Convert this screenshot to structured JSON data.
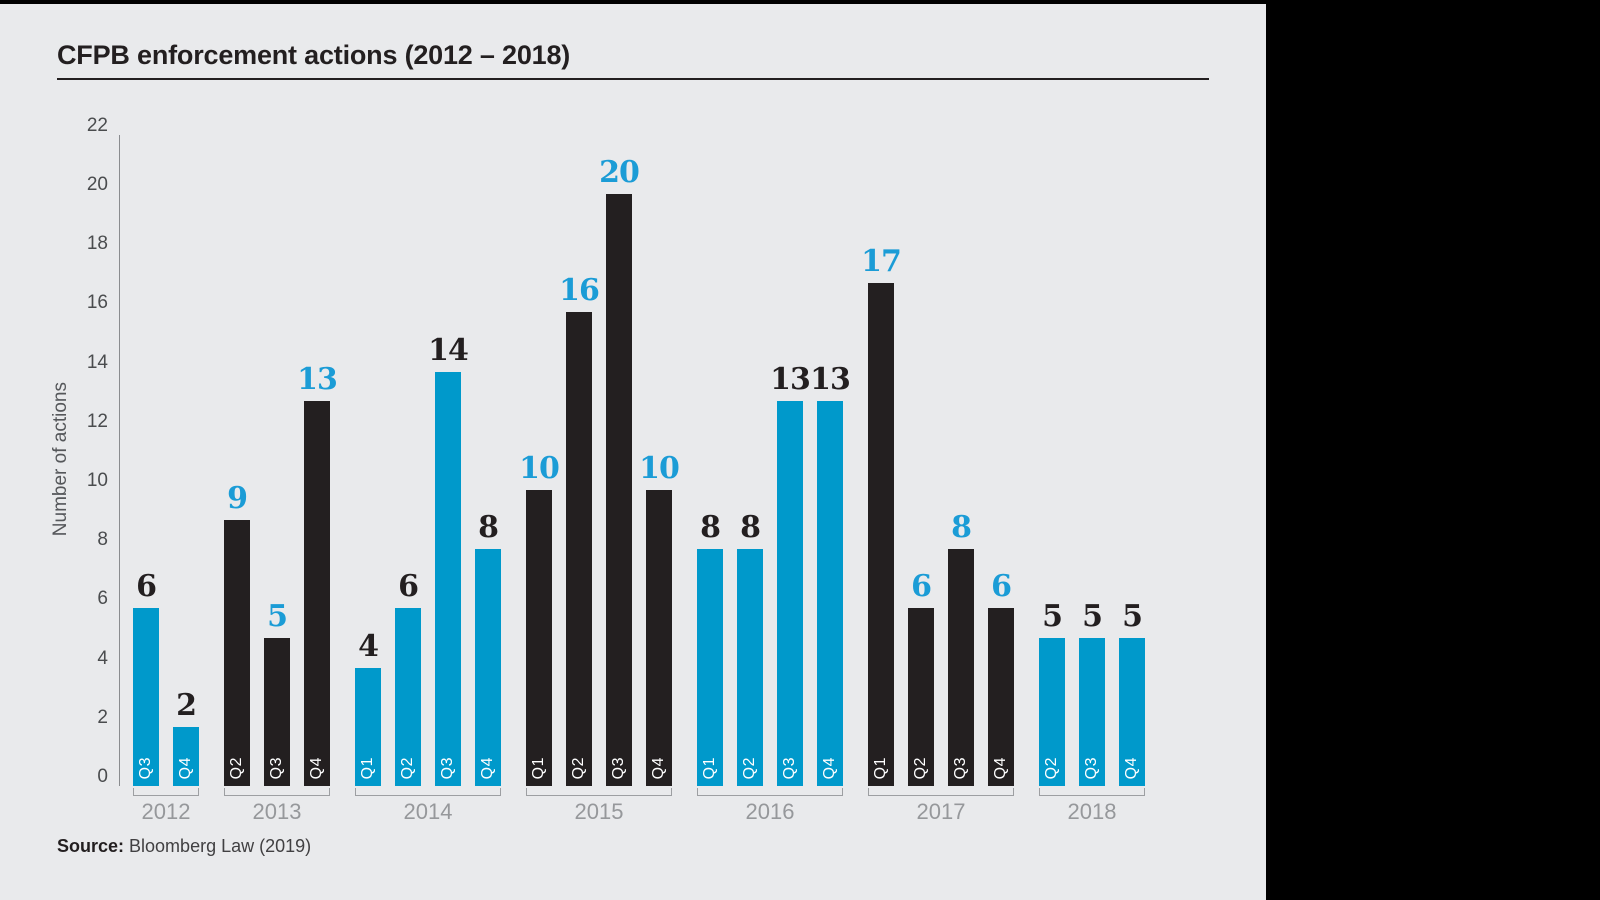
{
  "header": {
    "title": "CFPB enforcement actions (2012 – 2018)"
  },
  "source": {
    "prefix": "Source:",
    "text": " Bloomberg Law (2019)"
  },
  "chart_data": {
    "type": "bar",
    "title": "CFPB enforcement actions (2012 – 2018)",
    "ylabel": "Number of actions",
    "xlabel": "",
    "ylim": [
      0,
      22
    ],
    "yticks": [
      0,
      2,
      4,
      6,
      8,
      10,
      12,
      14,
      16,
      18,
      20,
      22
    ],
    "grid": false,
    "legend": "none",
    "bar_label_style": "value above bar, serif bold, contrast color",
    "quarter_label_style": "white, rotated 90deg CCW, inside bar bottom",
    "palette": {
      "blue": "#0099cb",
      "black": "#231f20",
      "label_blue": "#1b9cd6",
      "label_black": "#231f20",
      "background": "#e9eaec",
      "axis_line": "#8a8c8f",
      "tick_text": "#4a4c4e",
      "year_text": "#96989b",
      "bracket": "#9d9fa2",
      "quarter_text": "#ffffff"
    },
    "groups": [
      {
        "year": "2012",
        "bars": [
          {
            "quarter": "Q3",
            "value": 6,
            "color": "blue"
          },
          {
            "quarter": "Q4",
            "value": 2,
            "color": "blue"
          }
        ]
      },
      {
        "year": "2013",
        "bars": [
          {
            "quarter": "Q2",
            "value": 9,
            "color": "black"
          },
          {
            "quarter": "Q3",
            "value": 5,
            "color": "black"
          },
          {
            "quarter": "Q4",
            "value": 13,
            "color": "black"
          }
        ]
      },
      {
        "year": "2014",
        "bars": [
          {
            "quarter": "Q1",
            "value": 4,
            "color": "blue"
          },
          {
            "quarter": "Q2",
            "value": 6,
            "color": "blue"
          },
          {
            "quarter": "Q3",
            "value": 14,
            "color": "blue"
          },
          {
            "quarter": "Q4",
            "value": 8,
            "color": "blue"
          }
        ]
      },
      {
        "year": "2015",
        "bars": [
          {
            "quarter": "Q1",
            "value": 10,
            "color": "black"
          },
          {
            "quarter": "Q2",
            "value": 16,
            "color": "black"
          },
          {
            "quarter": "Q3",
            "value": 20,
            "color": "black"
          },
          {
            "quarter": "Q4",
            "value": 10,
            "color": "black"
          }
        ]
      },
      {
        "year": "2016",
        "bars": [
          {
            "quarter": "Q1",
            "value": 8,
            "color": "blue"
          },
          {
            "quarter": "Q2",
            "value": 8,
            "color": "blue"
          },
          {
            "quarter": "Q3",
            "value": 13,
            "color": "blue"
          },
          {
            "quarter": "Q4",
            "value": 13,
            "color": "blue"
          }
        ]
      },
      {
        "year": "2017",
        "bars": [
          {
            "quarter": "Q1",
            "value": 17,
            "color": "black"
          },
          {
            "quarter": "Q2",
            "value": 6,
            "color": "black"
          },
          {
            "quarter": "Q3",
            "value": 8,
            "color": "black"
          },
          {
            "quarter": "Q4",
            "value": 6,
            "color": "black"
          }
        ]
      },
      {
        "year": "2018",
        "bars": [
          {
            "quarter": "Q2",
            "value": 5,
            "color": "blue"
          },
          {
            "quarter": "Q3",
            "value": 5,
            "color": "blue"
          },
          {
            "quarter": "Q4",
            "value": 5,
            "color": "blue"
          }
        ]
      }
    ]
  }
}
